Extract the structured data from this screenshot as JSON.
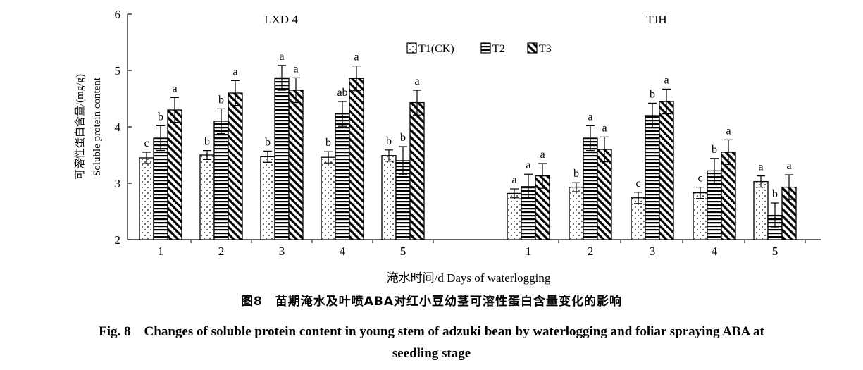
{
  "chart_data": {
    "type": "bar",
    "ylabel_cn": "可溶性蛋白含量/(mg/g)",
    "ylabel_en": "Soluble protein content",
    "xlabel": "淹水时间/d Days of waterlogging",
    "ylim": [
      2,
      6
    ],
    "yticks": [
      "2",
      "3",
      "4",
      "5",
      "6"
    ],
    "legend": [
      "T1(CK)",
      "T2",
      "T3"
    ],
    "groups": [
      {
        "name": "LXD 4",
        "categories": [
          "1",
          "2",
          "3",
          "4",
          "5"
        ],
        "series": [
          {
            "name": "T1(CK)",
            "values": [
              3.45,
              3.5,
              3.47,
              3.46,
              3.49
            ],
            "errors": [
              0.1,
              0.08,
              0.1,
              0.1,
              0.1
            ],
            "letters": [
              "c",
              "b",
              "b",
              "b",
              "b"
            ]
          },
          {
            "name": "T2",
            "values": [
              3.8,
              4.1,
              4.87,
              4.23,
              3.4
            ],
            "errors": [
              0.22,
              0.22,
              0.22,
              0.22,
              0.25
            ],
            "letters": [
              "b",
              "b",
              "a",
              "ab",
              "b"
            ]
          },
          {
            "name": "T3",
            "values": [
              4.3,
              4.6,
              4.65,
              4.86,
              4.43
            ],
            "errors": [
              0.22,
              0.22,
              0.22,
              0.22,
              0.22
            ],
            "letters": [
              "a",
              "a",
              "a",
              "a",
              "a"
            ]
          }
        ]
      },
      {
        "name": "TJH",
        "categories": [
          "1",
          "2",
          "3",
          "4",
          "5"
        ],
        "series": [
          {
            "name": "T1(CK)",
            "values": [
              2.82,
              2.93,
              2.74,
              2.83,
              3.03
            ],
            "errors": [
              0.08,
              0.08,
              0.1,
              0.1,
              0.1
            ],
            "letters": [
              "a",
              "b",
              "c",
              "c",
              "a"
            ]
          },
          {
            "name": "T2",
            "values": [
              2.94,
              3.8,
              4.2,
              3.22,
              2.43
            ],
            "errors": [
              0.22,
              0.22,
              0.22,
              0.22,
              0.22
            ],
            "letters": [
              "a",
              "a",
              "b",
              "b",
              "b"
            ]
          },
          {
            "name": "T3",
            "values": [
              3.13,
              3.6,
              4.45,
              3.55,
              2.93
            ],
            "errors": [
              0.22,
              0.22,
              0.22,
              0.22,
              0.22
            ],
            "letters": [
              "a",
              "a",
              "a",
              "a",
              "a"
            ]
          }
        ]
      }
    ]
  },
  "caption": {
    "cn": "图8　苗期淹水及叶喷ABA对红小豆幼茎可溶性蛋白含量变化的影响",
    "en_line1": "Fig. 8　Changes of soluble protein content in young stem of adzuki bean by waterlogging and foliar spraying ABA at",
    "en_line2": "seedling stage"
  }
}
